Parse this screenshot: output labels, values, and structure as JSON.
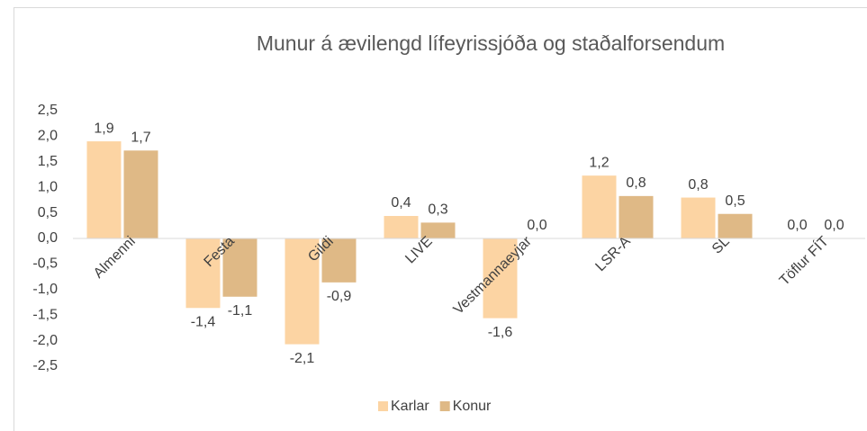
{
  "chart_data": {
    "type": "bar",
    "title": "Munur á ævilengd lífeyrissjóða og staðalforsendum",
    "categories": [
      "Almenni",
      "Festa",
      "Gildi",
      "LIVE",
      "Vestmannaeyjar",
      "LSR-A",
      "SL",
      "Töflur FÍT"
    ],
    "series": [
      {
        "name": "Karlar",
        "color": "#fcd4a3",
        "values": [
          1.9,
          -1.36,
          -2.07,
          0.44,
          -1.56,
          1.23,
          0.8,
          0.0
        ],
        "value_labels": [
          "1,9",
          "-1,4",
          "-2,1",
          "0,4",
          "-1,6",
          "1,2",
          "0,8",
          "0,0"
        ]
      },
      {
        "name": "Konur",
        "color": "#dfb986",
        "values": [
          1.72,
          -1.14,
          -0.86,
          0.31,
          0.0,
          0.83,
          0.48,
          0.0
        ],
        "value_labels": [
          "1,7",
          "-1,1",
          "-0,9",
          "0,3",
          "0,0",
          "0,8",
          "0,5",
          "0,0"
        ]
      }
    ],
    "ylim": [
      -2.5,
      2.5
    ],
    "yticks": [
      {
        "value": 2.5,
        "label": "2,5"
      },
      {
        "value": 2.0,
        "label": "2,0"
      },
      {
        "value": 1.5,
        "label": "1,5"
      },
      {
        "value": 1.0,
        "label": "1,0"
      },
      {
        "value": 0.5,
        "label": "0,5"
      },
      {
        "value": 0.0,
        "label": "0,0"
      },
      {
        "value": -0.5,
        "label": "-0,5"
      },
      {
        "value": -1.0,
        "label": "-1,0"
      },
      {
        "value": -1.5,
        "label": "-1,5"
      },
      {
        "value": -2.0,
        "label": "-2,0"
      },
      {
        "value": -2.5,
        "label": "-2,5"
      }
    ],
    "grid": false,
    "legend": "bottom"
  }
}
